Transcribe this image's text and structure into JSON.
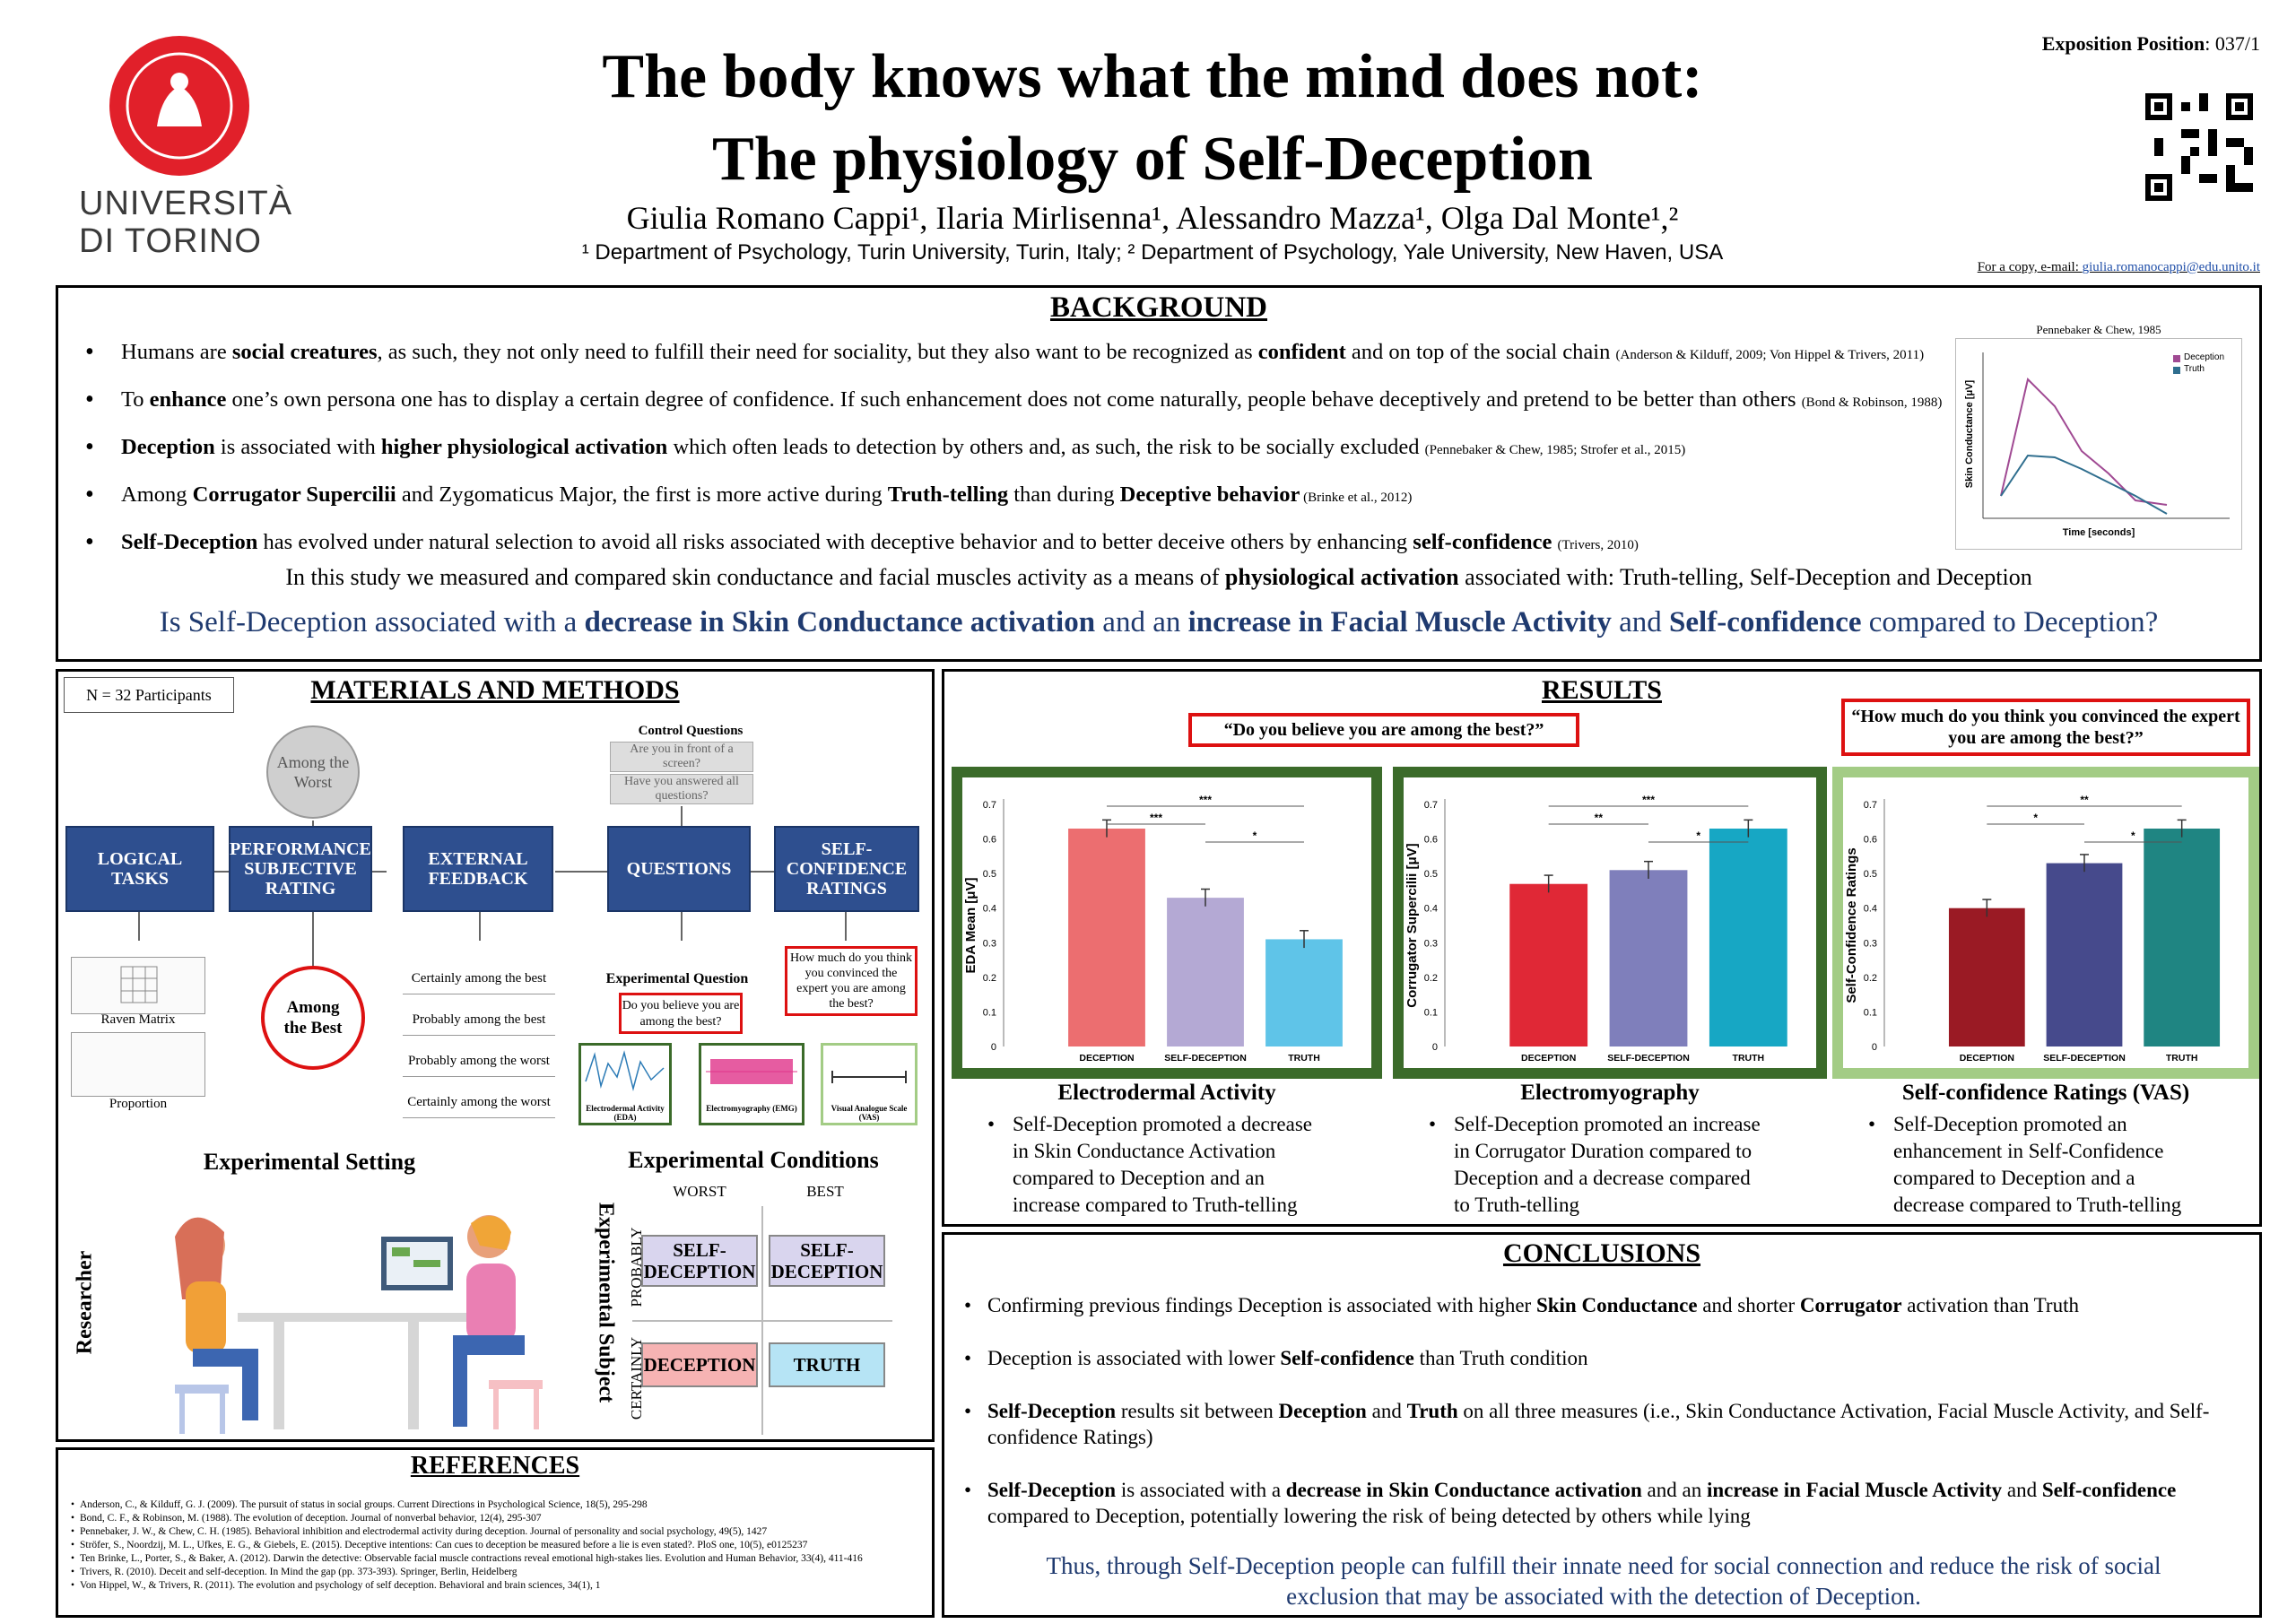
{
  "header": {
    "university_line1": "UNIVERSITÀ",
    "university_line2": "DI TORINO",
    "title_line1": "The body knows what the mind does not:",
    "title_line2": "The physiology of Self-Deception",
    "authors": "Giulia Romano Cappi¹, Ilaria Mirlisenna¹, Alessandro Mazza¹, Olga Dal Monte¹,²",
    "affiliations": "¹ Department of Psychology, Turin University, Turin, Italy; ² Department of Psychology, Yale University, New Haven, USA",
    "exposition_label": "Exposition Position",
    "exposition_value": ": 037/1",
    "copy_label": "For a copy, e-mail: ",
    "copy_email": "giulia.romanocappi@edu.unito.it"
  },
  "background": {
    "heading": "BACKGROUND",
    "bullets": [
      {
        "pre": "Humans are ",
        "b1": "social creatures",
        "mid": ", as such, they not only need to fulfill their need for sociality, but they also want to be recognized as ",
        "b2": "confident",
        "post": " and on top of the social chain ",
        "cite": "(Anderson & Kilduff, 2009; Von Hippel & Trivers, 2011)"
      },
      {
        "pre": "To ",
        "b1": "enhance",
        "mid": " one’s own persona one has to display a certain degree of confidence. If such enhancement does not come naturally, people behave deceptively and pretend to be better than others ",
        "b2": "",
        "post": "",
        "cite": "(Bond & Robinson, 1988)"
      },
      {
        "pre": "",
        "b1": "Deception",
        "mid": " is associated with ",
        "b2": "higher physiological activation",
        "post": " which often leads to detection by others and, as such, the risk to be socially excluded ",
        "cite": "(Pennebaker & Chew, 1985; Strofer et al., 2015)"
      },
      {
        "pre": "Among ",
        "b1": "Corrugator Supercilii",
        "mid": " and Zygomaticus Major, the first is more active during ",
        "b2": "Truth-telling",
        "post": " than during ",
        "b3": "Deceptive behavior",
        "cite": " (Brinke et al., 2012)"
      },
      {
        "pre": "",
        "b1": "Self-Deception",
        "mid": " has evolved under natural selection to avoid all risks associated with deceptive behavior and to better deceive others by enhancing ",
        "b2": "self-confidence",
        "post": " ",
        "cite": "(Trivers, 2010)"
      }
    ],
    "study_pre": "In this study we measured and compared skin conductance and facial muscles activity as a means of ",
    "study_bold": "physiological activation",
    "study_post": " associated with: Truth-telling, Self-Deception and Deception",
    "q_pre": "Is Self-Deception associated with a ",
    "q_b1": "decrease in Skin Conductance activation",
    "q_mid1": " and an ",
    "q_b2": "increase in Facial Muscle Activity",
    "q_mid2": " and ",
    "q_b3": "Self-confidence",
    "q_post": " compared to Deception?",
    "mini_chart": {
      "title": "Pennebaker & Chew, 1985",
      "ylabel": "Skin Conductance [μV]",
      "xlabel": "Time [seconds]",
      "legend": [
        "Deception",
        "Truth"
      ]
    }
  },
  "methods": {
    "heading": "MATERIALS AND METHODS",
    "n_label": "N = 32 Participants",
    "worst_circle": "Among the Worst",
    "best_circle": "Among the Best",
    "control_title": "Control Questions",
    "control_q1": "Are you in front of a screen?",
    "control_q2": "Have you answered all questions?",
    "steps": [
      "LOGICAL TASKS",
      "PERFORMANCE SUBJECTIVE RATING",
      "EXTERNAL FEEDBACK",
      "QUESTIONS",
      "SELF-CONFIDENCE RATINGS"
    ],
    "raven": "Raven Matrix",
    "proportion": "Proportion",
    "feedback_options": [
      "Certainly among the best",
      "Probably among the best",
      "Probably among the worst",
      "Certainly among the worst"
    ],
    "exp_q_title": "Experimental Question",
    "exp_q": "Do you believe you are among the best?",
    "conf_q": "How much do you think you convinced the expert you are among the best?",
    "eda_cap": "Electrodermal Activity (EDA)",
    "emg_cap": "Electromyography (EMG)",
    "vas_cap": "Visual Analogue Scale (VAS)",
    "setting_title": "Experimental Setting",
    "researcher": "Researcher",
    "subject": "Experimental Subject",
    "conditions_title": "Experimental Conditions",
    "worst": "WORST",
    "best": "BEST",
    "probably": "PROBABLY",
    "certainly": "CERTAINLY",
    "cond_sd": "SELF-DECEPTION",
    "cond_dec": "DECEPTION",
    "cond_truth": "TRUTH"
  },
  "results": {
    "heading": "RESULTS",
    "q1": "“Do you believe you are among the best?”",
    "q2": "“How much do you think you convinced the expert you are among the best?”",
    "labels": [
      "Electrodermal Activity",
      "Electromyography",
      "Self-confidence Ratings (VAS)"
    ],
    "bullets": [
      "Self-Deception promoted a decrease in Skin Conductance Activation compared to Deception and an increase compared to Truth-telling",
      "Self-Deception promoted an increase in Corrugator Duration compared to Deception and a decrease compared to Truth-telling",
      "Self-Deception promoted an enhancement in Self-Confidence compared to Deception and a decrease compared to Truth-telling"
    ]
  },
  "chart_data": [
    {
      "type": "bar",
      "ylabel": "EDA Mean [μV]",
      "categories": [
        "DECEPTION",
        "SELF-DECEPTION",
        "TRUTH"
      ],
      "values": [
        0.63,
        0.43,
        0.31
      ],
      "ylim": [
        0,
        0.7
      ],
      "colors": [
        "#ec6e70",
        "#b4a9d4",
        "#5fc4e8"
      ],
      "significance": [
        "***",
        "***",
        "*"
      ]
    },
    {
      "type": "bar",
      "ylabel": "Corrugator Supercilii [μV]",
      "categories": [
        "DECEPTION",
        "SELF-DECEPTION",
        "TRUTH"
      ],
      "values": [
        0.47,
        0.51,
        0.63
      ],
      "ylim": [
        0,
        0.7
      ],
      "colors": [
        "#e02836",
        "#7f7fbb",
        "#17a7c4"
      ],
      "significance": [
        "***",
        "**",
        "*"
      ]
    },
    {
      "type": "bar",
      "ylabel": "Self-Confidence Ratings",
      "categories": [
        "DECEPTION",
        "SELF-DECEPTION",
        "TRUTH"
      ],
      "values": [
        0.4,
        0.53,
        0.63
      ],
      "ylim": [
        0,
        0.7
      ],
      "colors": [
        "#9a1a24",
        "#464a8c",
        "#1f8582"
      ],
      "significance": [
        "**",
        "*",
        "*"
      ]
    }
  ],
  "conclusions": {
    "heading": "CONCLUSIONS",
    "bullets": [
      {
        "parts": [
          "Confirming previous findings Deception is associated with higher ",
          "Skin Conductance",
          " and shorter ",
          "Corrugator",
          " activation than Truth"
        ]
      },
      {
        "parts": [
          "Deception is associated with lower ",
          "Self-confidence",
          " than Truth condition"
        ]
      },
      {
        "parts": [
          "",
          "Self-Deception",
          " results sit between ",
          "Deception",
          " and ",
          "Truth",
          " on all three measures (i.e., Skin Conductance Activation, Facial Muscle Activity, and Self-confidence Ratings)"
        ]
      },
      {
        "parts": [
          "",
          "Self-Deception",
          " is associated with a ",
          "decrease in Skin Conductance activation",
          " and an ",
          "increase in Facial Muscle Activity",
          " and ",
          "Self-confidence",
          " compared to Deception, potentially lowering the risk of being detected by others while lying"
        ]
      }
    ],
    "final": "Thus, through Self-Deception people can fulfill their innate need for social connection and reduce the risk of social exclusion that may be associated with the detection of Deception."
  },
  "references": {
    "heading": "REFERENCES",
    "items": [
      "Anderson, C., & Kilduff, G. J. (2009). The pursuit of status in social groups. Current Directions in Psychological Science, 18(5), 295-298",
      "Bond, C. F., & Robinson, M. (1988). The evolution of deception. Journal of nonverbal behavior, 12(4), 295-307",
      "Pennebaker, J. W., & Chew, C. H. (1985). Behavioral inhibition and electrodermal activity during deception. Journal of personality and social psychology, 49(5), 1427",
      "Ströfer, S., Noordzij, M. L., Ufkes, E. G., & Giebels, E. (2015). Deceptive intentions: Can cues to deception be measured before a lie is even stated?. PloS one, 10(5), e0125237",
      "Ten Brinke, L., Porter, S., & Baker, A. (2012). Darwin the detective: Observable facial muscle contractions reveal emotional high-stakes lies. Evolution and Human Behavior, 33(4), 411-416",
      "Trivers, R. (2010). Deceit and self-deception. In Mind the gap (pp. 373-393). Springer, Berlin, Heidelberg",
      "Von Hippel, W., & Trivers, R. (2011). The evolution and psychology of self deception. Behavioral and brain sciences, 34(1), 1"
    ]
  }
}
